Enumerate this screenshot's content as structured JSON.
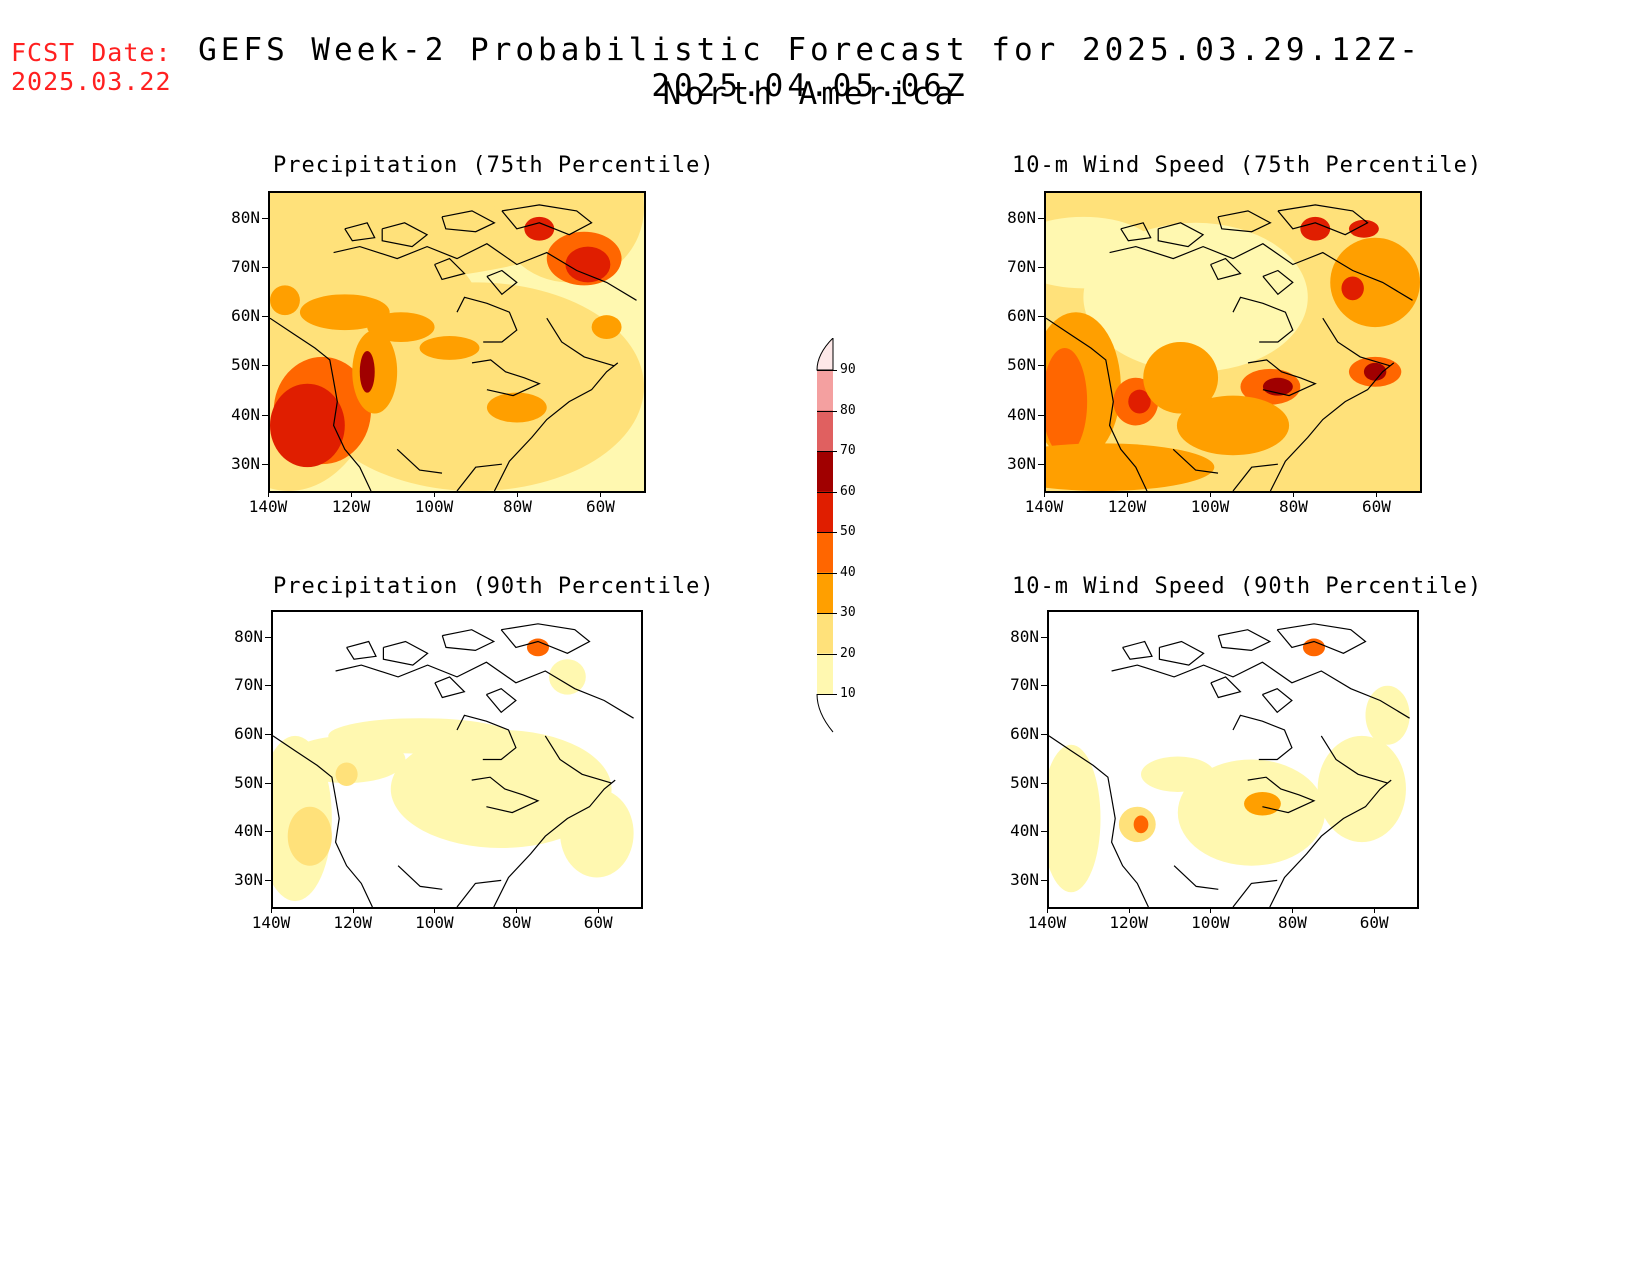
{
  "header": {
    "fcst_label": "FCST Date:",
    "fcst_date": "2025.03.22",
    "title": "GEFS Week-2 Probabilistic Forecast for 2025.03.29.12Z-2025.04.05.06Z",
    "subtitle": "North America"
  },
  "panels": [
    {
      "title": "Precipitation (75th Percentile)"
    },
    {
      "title": "10-m Wind Speed (75th Percentile)"
    },
    {
      "title": "Precipitation (90th Percentile)"
    },
    {
      "title": "10-m Wind Speed (90th Percentile)"
    }
  ],
  "axes": {
    "lat_labels": [
      "80N",
      "70N",
      "60N",
      "50N",
      "40N",
      "30N"
    ],
    "lon_labels": [
      "140W",
      "120W",
      "100W",
      "80W",
      "60W"
    ]
  },
  "colorbar": {
    "labels": [
      "90",
      "80",
      "70",
      "60",
      "50",
      "40",
      "30",
      "20",
      "10"
    ],
    "colors": [
      "#fde8e8",
      "#f4a0a0",
      "#e06060",
      "#a00000",
      "#e01e00",
      "#ff6600",
      "#ff9f00",
      "#ffe17a",
      "#fff8b0"
    ]
  },
  "colors": {
    "fcst": "#ff2020"
  }
}
